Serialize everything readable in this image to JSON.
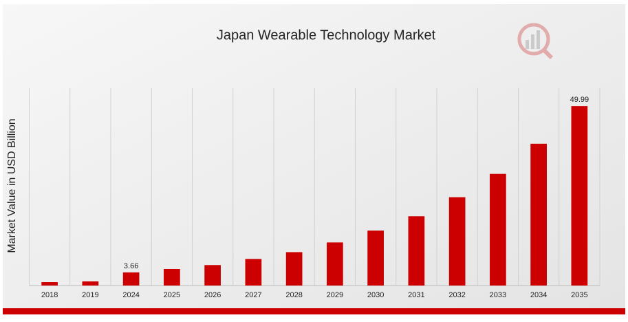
{
  "chart_data": {
    "type": "bar",
    "title": "Japan Wearable Technology Market",
    "y_label": "Market Value in USD Billion",
    "categories": [
      "2018",
      "2019",
      "2024",
      "2025",
      "2026",
      "2027",
      "2028",
      "2029",
      "2030",
      "2031",
      "2032",
      "2033",
      "2034",
      "2035"
    ],
    "values": [
      0.95,
      1.15,
      3.66,
      4.6,
      5.7,
      7.4,
      9.3,
      12.0,
      15.3,
      19.3,
      24.6,
      31.1,
      39.5,
      49.99
    ],
    "value_labels": [
      null,
      null,
      "3.66",
      null,
      null,
      null,
      null,
      null,
      null,
      null,
      null,
      null,
      null,
      "49.99"
    ],
    "color": "#cc0000",
    "ylim": [
      0,
      55
    ],
    "grid": true
  }
}
